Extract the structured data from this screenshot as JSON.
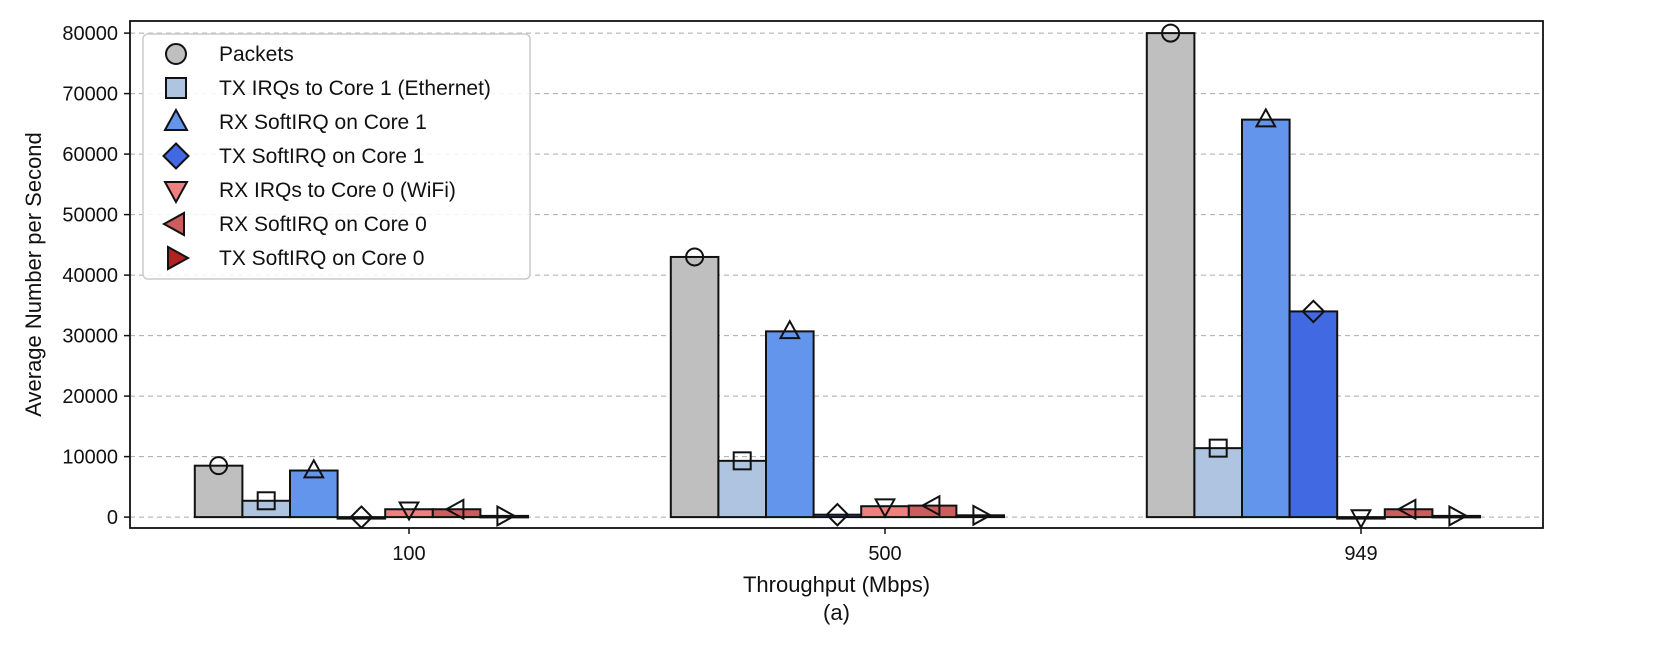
{
  "chart_data": {
    "type": "bar",
    "caption": "(a)",
    "xlabel": "Throughput (Mbps)",
    "ylabel": "Average Number per Second",
    "ylim": [
      -1800,
      82000
    ],
    "yticks": [
      0,
      10000,
      20000,
      30000,
      40000,
      50000,
      60000,
      70000,
      80000
    ],
    "ytick_labels": [
      "0",
      "10000",
      "20000",
      "30000",
      "40000",
      "50000",
      "60000",
      "70000",
      "80000"
    ],
    "grid": true,
    "legend_position": "top-left",
    "categories": [
      "100",
      "500",
      "949"
    ],
    "series": [
      {
        "name": "Packets",
        "color": "#bfbfbf",
        "marker": "circle",
        "values": [
          8500,
          43000,
          80000
        ]
      },
      {
        "name": "TX IRQs to Core 1 (Ethernet)",
        "color": "#aec4e0",
        "marker": "square",
        "values": [
          2700,
          9300,
          11400
        ]
      },
      {
        "name": "RX SoftIRQ on Core 1",
        "color": "#6495ed",
        "marker": "triangle-up",
        "values": [
          7700,
          30700,
          65700
        ]
      },
      {
        "name": "TX SoftIRQ on Core 1",
        "color": "#4169e1",
        "marker": "diamond",
        "values": [
          0,
          400,
          34000
        ]
      },
      {
        "name": "RX IRQs to Core 0 (WiFi)",
        "color": "#f08080",
        "marker": "triangle-down",
        "values": [
          1300,
          1800,
          0
        ]
      },
      {
        "name": "RX SoftIRQ on Core 0",
        "color": "#cd5c5c",
        "marker": "triangle-left",
        "values": [
          1300,
          1900,
          1300
        ]
      },
      {
        "name": "TX SoftIRQ on Core 0",
        "color": "#b22222",
        "marker": "triangle-right",
        "values": [
          200,
          300,
          200
        ]
      }
    ]
  }
}
